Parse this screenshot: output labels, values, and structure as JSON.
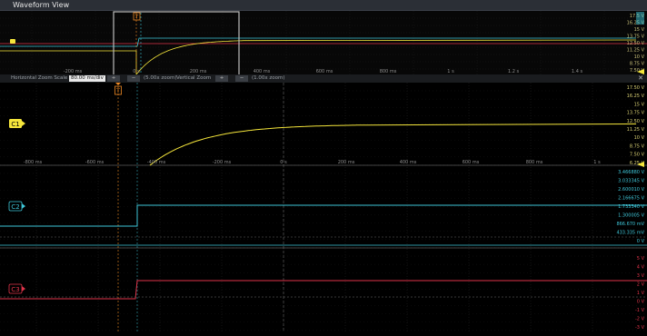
{
  "window": {
    "title": "Waveform View"
  },
  "overview": {
    "time_labels": [
      "-200 ms",
      "0 s",
      "200 ms",
      "400 ms",
      "600 ms",
      "800 ms",
      "1 s",
      "1.2 s",
      "1.4 s"
    ],
    "volt_labels": [
      "17.5 V",
      "16.25 V",
      "15 V",
      "13.75 V",
      "12.50 V",
      "11.25 V",
      "10 V",
      "8.75 V",
      "7.50 V"
    ],
    "trigger_label": "T"
  },
  "zoom_bar": {
    "h_label": "Horizontal Zoom Scale",
    "h_value": "80.00 ms/div",
    "h_zoom": "(5.00x zoom)",
    "v_label": "Vertical Zoom",
    "v_zoom": "(1.00x zoom)",
    "plus": "+",
    "minus": "−",
    "close": "✕"
  },
  "main": {
    "trigger_label": "T",
    "time_labels": [
      "-800 ms",
      "-600 ms",
      "-400 ms",
      "-200 ms",
      "0 s",
      "200 ms",
      "400 ms",
      "600 ms",
      "800 ms",
      "1 s"
    ],
    "c1": {
      "label": "C1",
      "color": "#f5e63b",
      "volt_labels": [
        "17.50 V",
        "16.25 V",
        "15 V",
        "13.75 V",
        "12.50 V",
        "11.25 V",
        "10 V",
        "8.75 V",
        "7.50 V",
        "6.25 V"
      ]
    },
    "c2": {
      "label": "C2",
      "color": "#3ec6d8",
      "volt_labels": [
        "3.466880 V",
        "3.033345 V",
        "2.600010 V",
        "2.166675 V",
        "1.733340 V",
        "1.300005 V",
        "866.670 mV",
        "433.335 mV",
        "0 V"
      ]
    },
    "c3": {
      "label": "C3",
      "color": "#e0344a",
      "volt_labels": [
        "5 V",
        "4 V",
        "3 V",
        "2 V",
        "1 V",
        "0 V",
        "-1 V",
        "-2 V",
        "-3 V"
      ]
    }
  }
}
